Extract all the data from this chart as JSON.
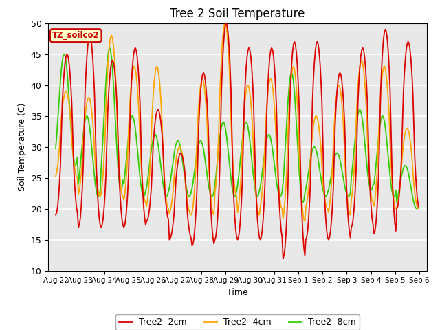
{
  "title": "Tree 2 Soil Temperature",
  "xlabel": "Time",
  "ylabel": "Soil Temperature (C)",
  "ylim": [
    10,
    50
  ],
  "annotation_text": "TZ_soilco2",
  "annotation_color": "#CC0000",
  "annotation_bg": "#FFFFCC",
  "bg_color": "#E8E8E8",
  "grid_color": "white",
  "x_labels": [
    "Aug 22",
    "Aug 23",
    "Aug 24",
    "Aug 25",
    "Aug 26",
    "Aug 27",
    "Aug 28",
    "Aug 29",
    "Aug 30",
    "Aug 31",
    "Sep 1",
    "Sep 2",
    "Sep 3",
    "Sep 4",
    "Sep 5",
    "Sep 6"
  ],
  "line_2cm_color": "#DD0000",
  "line_4cm_color": "#FFA500",
  "line_8cm_color": "#33CC00",
  "legend_labels": [
    "Tree2 -2cm",
    "Tree2 -4cm",
    "Tree2 -8cm"
  ],
  "lw": 1.3,
  "n_days": 16,
  "pts_per_day": 24,
  "base_temp": 31,
  "amp_2cm": 15,
  "amp_4cm": 11,
  "amp_8cm": 7,
  "phase_2cm": -1.5,
  "phase_4cm": -1.2,
  "phase_8cm": -0.7,
  "trend_amp": 3.0,
  "figsize": [
    6.4,
    4.8
  ],
  "dpi": 100
}
